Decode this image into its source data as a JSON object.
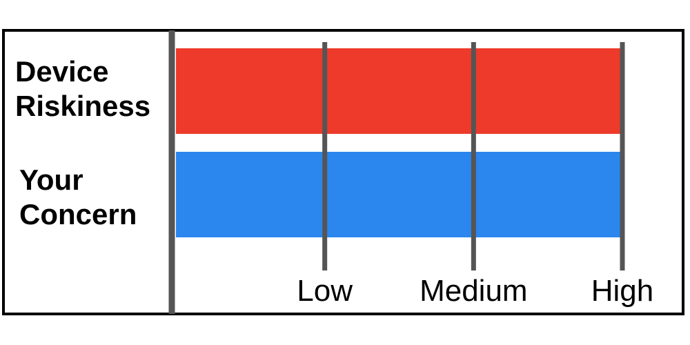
{
  "chart_data": {
    "type": "bar",
    "orientation": "horizontal",
    "categories": [
      {
        "lines": [
          "Device",
          "Riskiness"
        ],
        "value": 3,
        "color": "#ee3a2a"
      },
      {
        "lines": [
          "Your",
          "Concern"
        ],
        "value": 3,
        "color": "#2b86ee"
      }
    ],
    "x_ticks": [
      {
        "value": 1,
        "label": "Low"
      },
      {
        "value": 2,
        "label": "Medium"
      },
      {
        "value": 3,
        "label": "High"
      }
    ],
    "xlim": [
      0,
      3
    ],
    "grid": true,
    "colors": {
      "frame": "#000000",
      "axis": "#555555",
      "gridline": "#555555"
    }
  }
}
